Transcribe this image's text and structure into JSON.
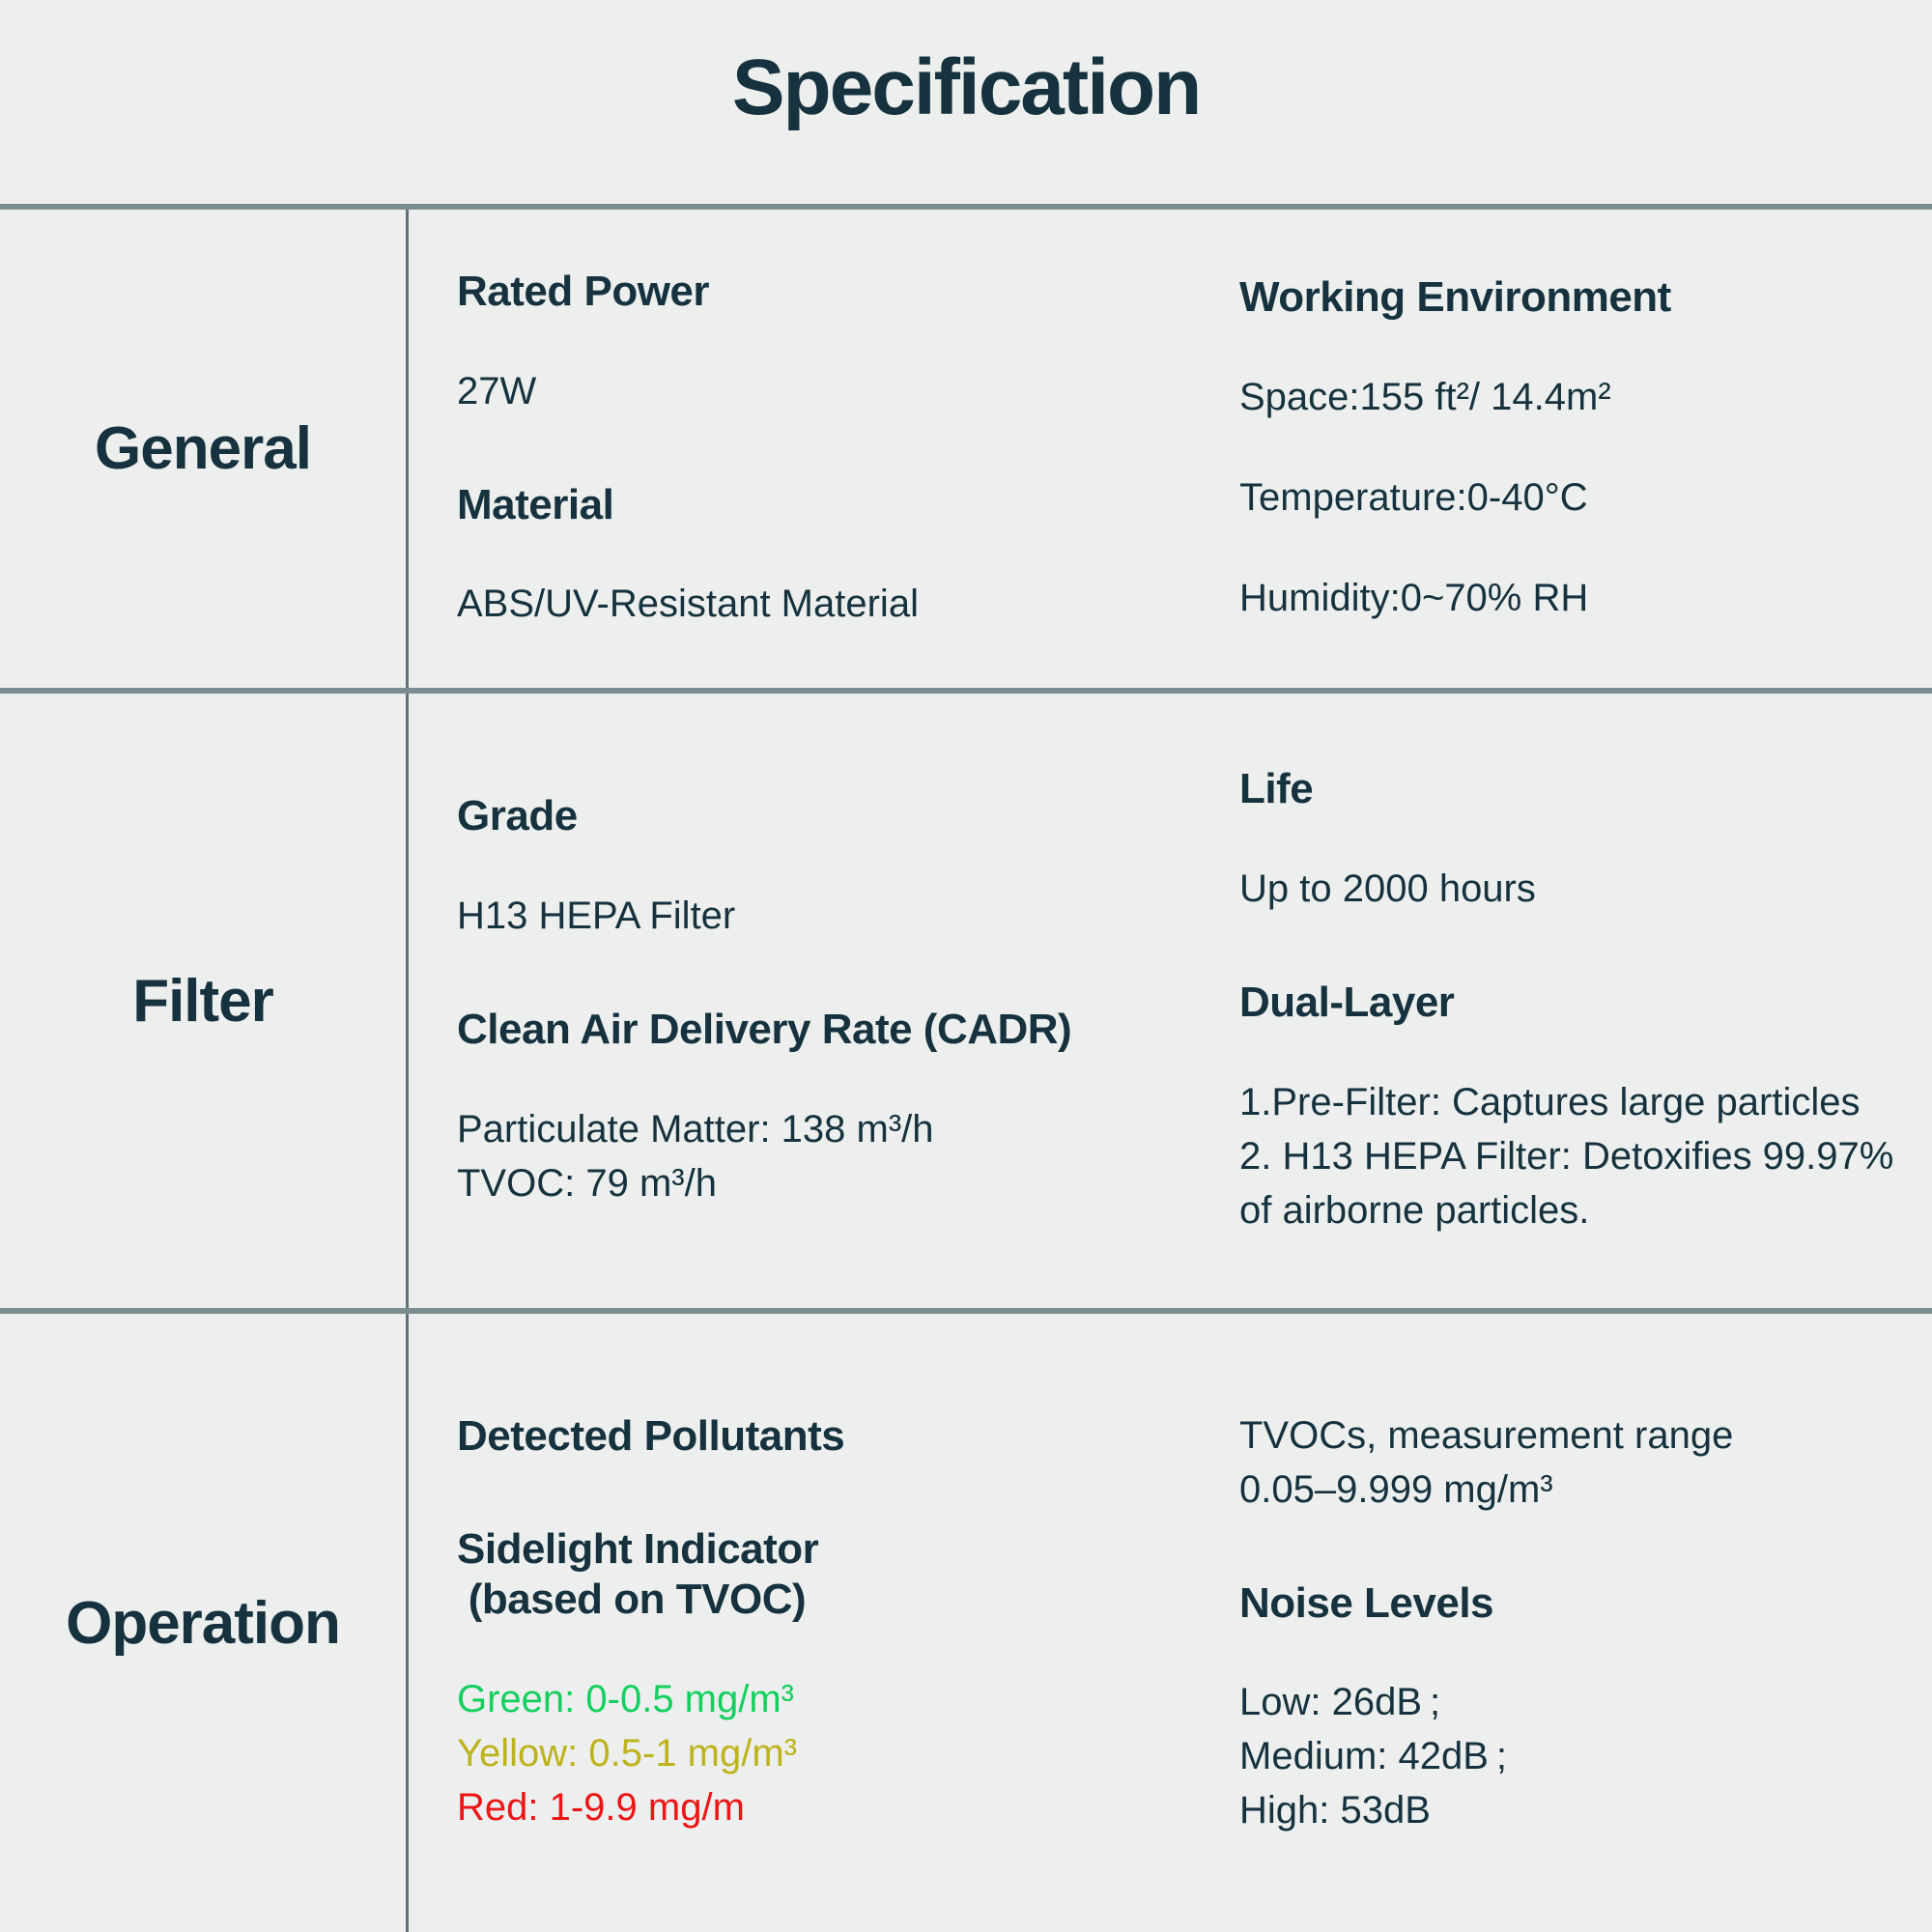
{
  "title": "Specification",
  "colors": {
    "background": "#edefee",
    "dark": "#16323e",
    "horizontal_line": "#7b8d90",
    "vertical_line": "#5d7379",
    "green": "#14cf5e",
    "yellow": "#bdb31c",
    "red": "#ed1515"
  },
  "sections": [
    {
      "label": "General",
      "columns": [
        [
          {
            "style": "header",
            "lines": [
              {
                "text": "Rated Power"
              }
            ]
          },
          {
            "style": "body",
            "lines": [
              {
                "text": "27W"
              }
            ]
          },
          {
            "style": "header",
            "lines": [
              {
                "text": "Material"
              }
            ]
          },
          {
            "style": "body",
            "lines": [
              {
                "text": "ABS/UV-Resistant Material"
              }
            ]
          }
        ],
        [
          {
            "style": "header",
            "lines": [
              {
                "text": "Working Environment"
              }
            ]
          },
          {
            "style": "body",
            "lines": [
              {
                "text": "Space:155 ft²/ 14.4m²"
              }
            ]
          },
          {
            "style": "body",
            "lines": [
              {
                "text": "Temperature:0-40°C"
              }
            ]
          },
          {
            "style": "body",
            "lines": [
              {
                "text": "Humidity:0~70% RH"
              }
            ]
          }
        ]
      ]
    },
    {
      "label": "Filter",
      "columns": [
        [
          {
            "style": "header",
            "lines": [
              {
                "text": "Grade"
              }
            ]
          },
          {
            "style": "body",
            "lines": [
              {
                "text": "H13 HEPA Filter"
              }
            ]
          },
          {
            "style": "header",
            "lines": [
              {
                "text": "Clean Air Delivery Rate (CADR)"
              }
            ]
          },
          {
            "style": "body",
            "lines": [
              {
                "text": "Particulate Matter: 138 m³/h"
              },
              {
                "text": "TVOC: 79 m³/h"
              }
            ]
          }
        ],
        [
          {
            "style": "header",
            "lines": [
              {
                "text": "Life"
              }
            ]
          },
          {
            "style": "body",
            "lines": [
              {
                "text": "Up to 2000 hours"
              }
            ]
          },
          {
            "style": "header",
            "lines": [
              {
                "text": "Dual-Layer"
              }
            ]
          },
          {
            "style": "body",
            "lines": [
              {
                "text": "1.Pre-Filter: Captures large particles"
              },
              {
                "text": "2. H13 HEPA Filter: Detoxifies 99.97%"
              },
              {
                "text": "of airborne particles."
              }
            ]
          }
        ]
      ]
    },
    {
      "label": "Operation",
      "columns": [
        [
          {
            "style": "header",
            "lines": [
              {
                "text": "Detected Pollutants"
              }
            ]
          },
          {
            "style": "header",
            "lines": [
              {
                "text": "Sidelight Indicator"
              },
              {
                "text": " (based on TVOC)"
              }
            ]
          },
          {
            "style": "body",
            "lines": [
              {
                "text": "Green: 0-0.5 mg/m³",
                "color": "green"
              },
              {
                "text": "Yellow: 0.5-1 mg/m³",
                "color": "yellow"
              },
              {
                "text": "Red: 1-9.9 mg/m",
                "color": "red"
              }
            ]
          }
        ],
        [
          {
            "style": "body",
            "lines": [
              {
                "text": "TVOCs, measurement range"
              },
              {
                "text": "0.05–9.999 mg/m³"
              }
            ]
          },
          {
            "style": "header",
            "lines": [
              {
                "text": "Noise Levels"
              }
            ]
          },
          {
            "style": "body",
            "lines": [
              {
                "text": "Low: 26dB ;"
              },
              {
                "text": "Medium: 42dB ;"
              },
              {
                "text": "High: 53dB"
              }
            ]
          }
        ]
      ]
    }
  ]
}
